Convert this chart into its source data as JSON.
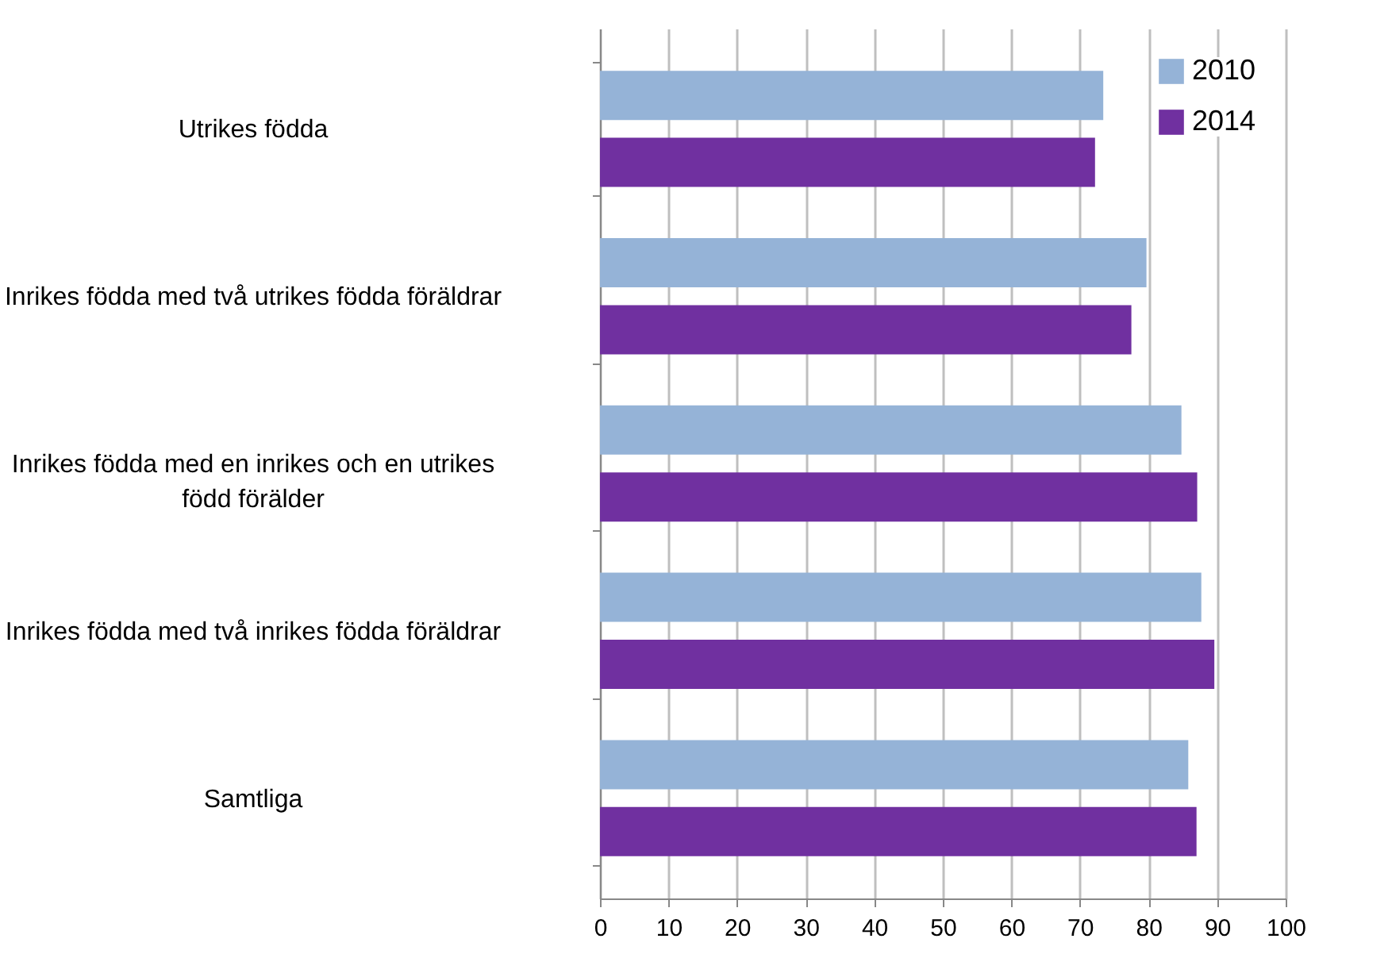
{
  "chart_data": {
    "type": "bar",
    "orientation": "horizontal",
    "categories": [
      "Utrikes födda",
      "Inrikes födda med två utrikes födda föräldrar",
      "Inrikes födda med en inrikes och en utrikes född förälder",
      "Inrikes födda med två inrikes födda föräldrar",
      "Samtliga"
    ],
    "series": [
      {
        "name": "2010",
        "color": "#95b3d7",
        "values": [
          73.4,
          79.7,
          84.8,
          87.7,
          85.8
        ]
      },
      {
        "name": "2014",
        "color": "#7030a0",
        "values": [
          72.2,
          77.5,
          87.1,
          89.6,
          87.0
        ]
      }
    ],
    "xlim": [
      0,
      100
    ],
    "xticks": [
      0,
      10,
      20,
      30,
      40,
      50,
      60,
      70,
      80,
      90,
      100
    ],
    "grid": "x",
    "legend": "top right"
  }
}
